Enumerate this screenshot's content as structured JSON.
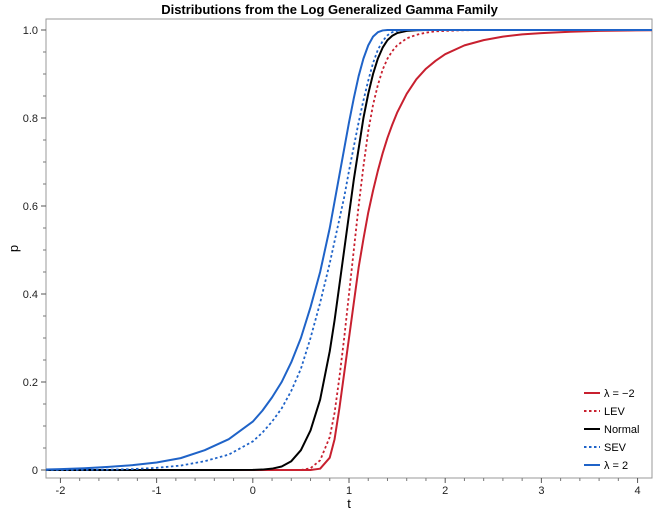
{
  "chart_data": {
    "type": "line",
    "title": "Distributions from the Log Generalized Gamma Family",
    "xlabel": "t",
    "ylabel": "p",
    "xlim": [
      -2.15,
      4.15
    ],
    "ylim": [
      0,
      1.0
    ],
    "x_ticks": [
      -2,
      -1,
      0,
      1,
      2,
      3,
      4
    ],
    "y_ticks": [
      0,
      0.2,
      0.4,
      0.6,
      0.8,
      1.0
    ],
    "x_tick_labels": [
      "-2",
      "-1",
      "0",
      "1",
      "2",
      "3",
      "4"
    ],
    "y_tick_labels": [
      "0",
      "0.2",
      "0.4",
      "0.6",
      "0.8",
      "1.0"
    ],
    "grid": false,
    "legend_position": "bottom-right",
    "x": [
      -2.15,
      -2.0,
      -1.75,
      -1.5,
      -1.25,
      -1.0,
      -0.75,
      -0.5,
      -0.25,
      0.0,
      0.1,
      0.2,
      0.3,
      0.4,
      0.5,
      0.6,
      0.7,
      0.8,
      0.85,
      0.9,
      0.95,
      1.0,
      1.05,
      1.1,
      1.15,
      1.2,
      1.25,
      1.3,
      1.35,
      1.4,
      1.45,
      1.5,
      1.6,
      1.7,
      1.8,
      1.9,
      2.0,
      2.2,
      2.4,
      2.6,
      2.8,
      3.0,
      3.3,
      3.6,
      3.9,
      4.15
    ],
    "series": [
      {
        "name": "λ = −2",
        "color": "#c8202f",
        "dash": "solid",
        "values": [
          0,
          0,
          0,
          0,
          0,
          0,
          0,
          0,
          0,
          0,
          0,
          0,
          0,
          0,
          0,
          0,
          0.003,
          0.028,
          0.07,
          0.14,
          0.22,
          0.3,
          0.38,
          0.46,
          0.525,
          0.585,
          0.635,
          0.68,
          0.72,
          0.755,
          0.785,
          0.812,
          0.855,
          0.888,
          0.912,
          0.93,
          0.945,
          0.965,
          0.977,
          0.985,
          0.99,
          0.993,
          0.996,
          0.998,
          0.999,
          0.9995
        ]
      },
      {
        "name": "LEV",
        "color": "#c8202f",
        "dash": "dotted",
        "values": [
          0,
          0,
          0,
          0,
          0,
          0,
          0,
          0,
          0,
          0,
          0,
          0,
          0,
          0,
          0,
          0.004,
          0.022,
          0.075,
          0.13,
          0.21,
          0.3,
          0.4,
          0.5,
          0.6,
          0.69,
          0.77,
          0.83,
          0.875,
          0.91,
          0.935,
          0.952,
          0.965,
          0.981,
          0.989,
          0.994,
          0.997,
          0.998,
          0.9995,
          1,
          1,
          1,
          1,
          1,
          1,
          1,
          1
        ]
      },
      {
        "name": "Normal",
        "color": "#000000",
        "dash": "solid",
        "values": [
          0,
          0,
          0,
          0,
          0,
          0,
          0,
          0,
          0,
          0.0002,
          0.001,
          0.003,
          0.008,
          0.02,
          0.045,
          0.09,
          0.16,
          0.27,
          0.34,
          0.42,
          0.5,
          0.58,
          0.66,
          0.73,
          0.8,
          0.855,
          0.9,
          0.935,
          0.96,
          0.977,
          0.987,
          0.993,
          0.998,
          0.9995,
          1,
          1,
          1,
          1,
          1,
          1,
          1,
          1,
          1,
          1,
          1,
          1
        ]
      },
      {
        "name": "SEV",
        "color": "#1f63c8",
        "dash": "dotted",
        "values": [
          0,
          0,
          0.0003,
          0.0008,
          0.002,
          0.005,
          0.01,
          0.02,
          0.035,
          0.065,
          0.085,
          0.11,
          0.14,
          0.18,
          0.23,
          0.3,
          0.38,
          0.47,
          0.52,
          0.57,
          0.62,
          0.68,
          0.735,
          0.79,
          0.84,
          0.885,
          0.925,
          0.955,
          0.975,
          0.988,
          0.995,
          0.998,
          1,
          1,
          1,
          1,
          1,
          1,
          1,
          1,
          1,
          1,
          1,
          1,
          1,
          1
        ]
      },
      {
        "name": "λ = 2",
        "color": "#1f63c8",
        "dash": "solid",
        "values": [
          0.001,
          0.002,
          0.004,
          0.007,
          0.011,
          0.017,
          0.027,
          0.045,
          0.07,
          0.11,
          0.135,
          0.165,
          0.2,
          0.245,
          0.3,
          0.37,
          0.45,
          0.55,
          0.61,
          0.67,
          0.73,
          0.79,
          0.845,
          0.895,
          0.935,
          0.965,
          0.985,
          0.995,
          0.999,
          1,
          1,
          1,
          1,
          1,
          1,
          1,
          1,
          1,
          1,
          1,
          1,
          1,
          1,
          1,
          1,
          1
        ]
      }
    ]
  }
}
